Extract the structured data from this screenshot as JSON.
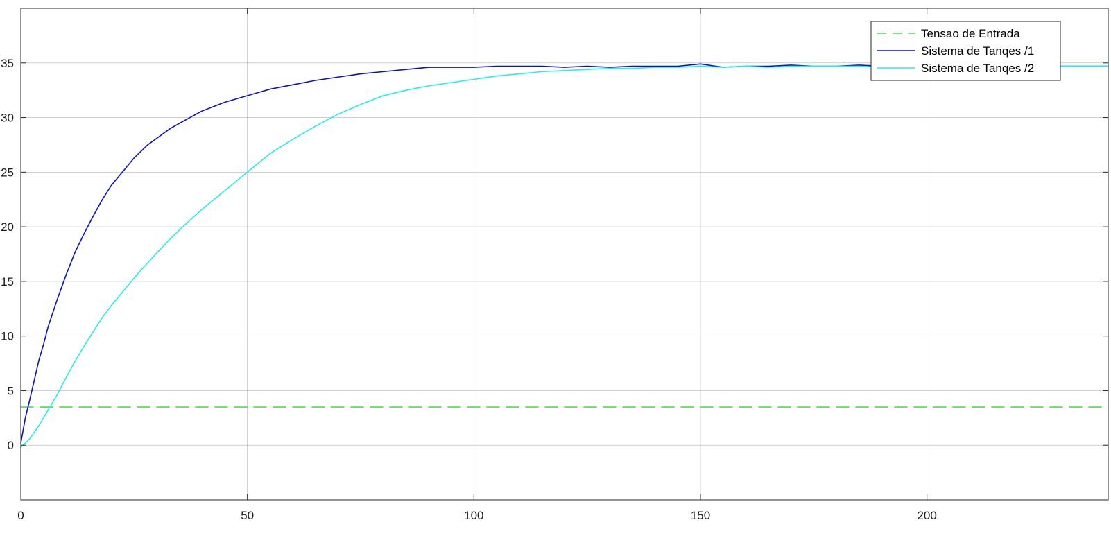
{
  "chart_data": {
    "type": "line",
    "title": "",
    "xlabel": "",
    "ylabel": "",
    "xlim": [
      0,
      240
    ],
    "ylim": [
      -5,
      40
    ],
    "xticks": [
      0,
      50,
      100,
      150,
      200
    ],
    "yticks": [
      0,
      5,
      10,
      15,
      20,
      25,
      30,
      35
    ],
    "xtick_labels": [
      "0",
      "50",
      "100",
      "150",
      "200"
    ],
    "ytick_labels": [
      "0",
      "5",
      "10",
      "15",
      "20",
      "25",
      "30",
      "35"
    ],
    "grid": true,
    "legend_position": "top-right",
    "series": [
      {
        "name": "Tensao de Entrada",
        "color": "#4cdd4c",
        "style": "dashed",
        "x": [
          0,
          240
        ],
        "y": [
          3.5,
          3.5
        ]
      },
      {
        "name": "Sistema de Tanqes /1",
        "color": "#0a10c8",
        "style": "solid",
        "x": [
          0,
          1,
          2,
          3,
          4,
          5,
          6,
          8,
          10,
          12,
          14,
          16,
          18,
          20,
          22,
          25,
          28,
          30,
          33,
          36,
          40,
          45,
          50,
          55,
          60,
          65,
          70,
          75,
          80,
          85,
          90,
          95,
          100,
          105,
          110,
          115,
          120,
          125,
          130,
          135,
          140,
          145,
          150,
          155,
          160,
          165,
          170,
          175,
          180,
          185,
          190,
          195,
          200,
          205,
          210,
          215,
          220,
          225,
          230,
          235,
          240
        ],
        "y": [
          0.2,
          2.5,
          4.2,
          6.0,
          7.8,
          9.2,
          10.8,
          13.3,
          15.6,
          17.7,
          19.4,
          21.0,
          22.5,
          23.8,
          24.8,
          26.3,
          27.5,
          28.1,
          29.0,
          29.7,
          30.6,
          31.4,
          32.0,
          32.6,
          33.0,
          33.4,
          33.7,
          34.0,
          34.2,
          34.4,
          34.6,
          34.6,
          34.6,
          34.7,
          34.7,
          34.7,
          34.6,
          34.7,
          34.6,
          34.7,
          34.7,
          34.7,
          34.9,
          34.6,
          34.7,
          34.7,
          34.8,
          34.7,
          34.7,
          34.8,
          34.7,
          34.6,
          34.7,
          34.7,
          34.7,
          34.6,
          34.7,
          34.7,
          34.7,
          34.7,
          34.7
        ]
      },
      {
        "name": "Sistema de Tanqes /2",
        "color": "#20f0ec",
        "style": "solid",
        "x": [
          0,
          2,
          4,
          6,
          8,
          10,
          12,
          14,
          16,
          18,
          20,
          23,
          26,
          30,
          33,
          36,
          40,
          45,
          50,
          55,
          60,
          65,
          70,
          75,
          80,
          85,
          90,
          95,
          100,
          105,
          110,
          115,
          120,
          125,
          130,
          135,
          140,
          145,
          150,
          155,
          160,
          165,
          170,
          175,
          180,
          185,
          190,
          195,
          200,
          205,
          210,
          215,
          220,
          225,
          230,
          235,
          240
        ],
        "y": [
          -0.2,
          0.6,
          1.8,
          3.2,
          4.6,
          6.2,
          7.7,
          9.1,
          10.4,
          11.7,
          12.8,
          14.3,
          15.8,
          17.6,
          18.9,
          20.1,
          21.6,
          23.3,
          25.0,
          26.7,
          28.0,
          29.2,
          30.3,
          31.2,
          32.0,
          32.5,
          32.9,
          33.2,
          33.5,
          33.8,
          34.0,
          34.2,
          34.3,
          34.4,
          34.5,
          34.5,
          34.6,
          34.6,
          34.7,
          34.6,
          34.7,
          34.6,
          34.7,
          34.7,
          34.7,
          34.7,
          34.6,
          34.7,
          34.7,
          34.6,
          34.7,
          34.7,
          34.7,
          34.7,
          34.7,
          34.7,
          34.7
        ]
      }
    ]
  }
}
